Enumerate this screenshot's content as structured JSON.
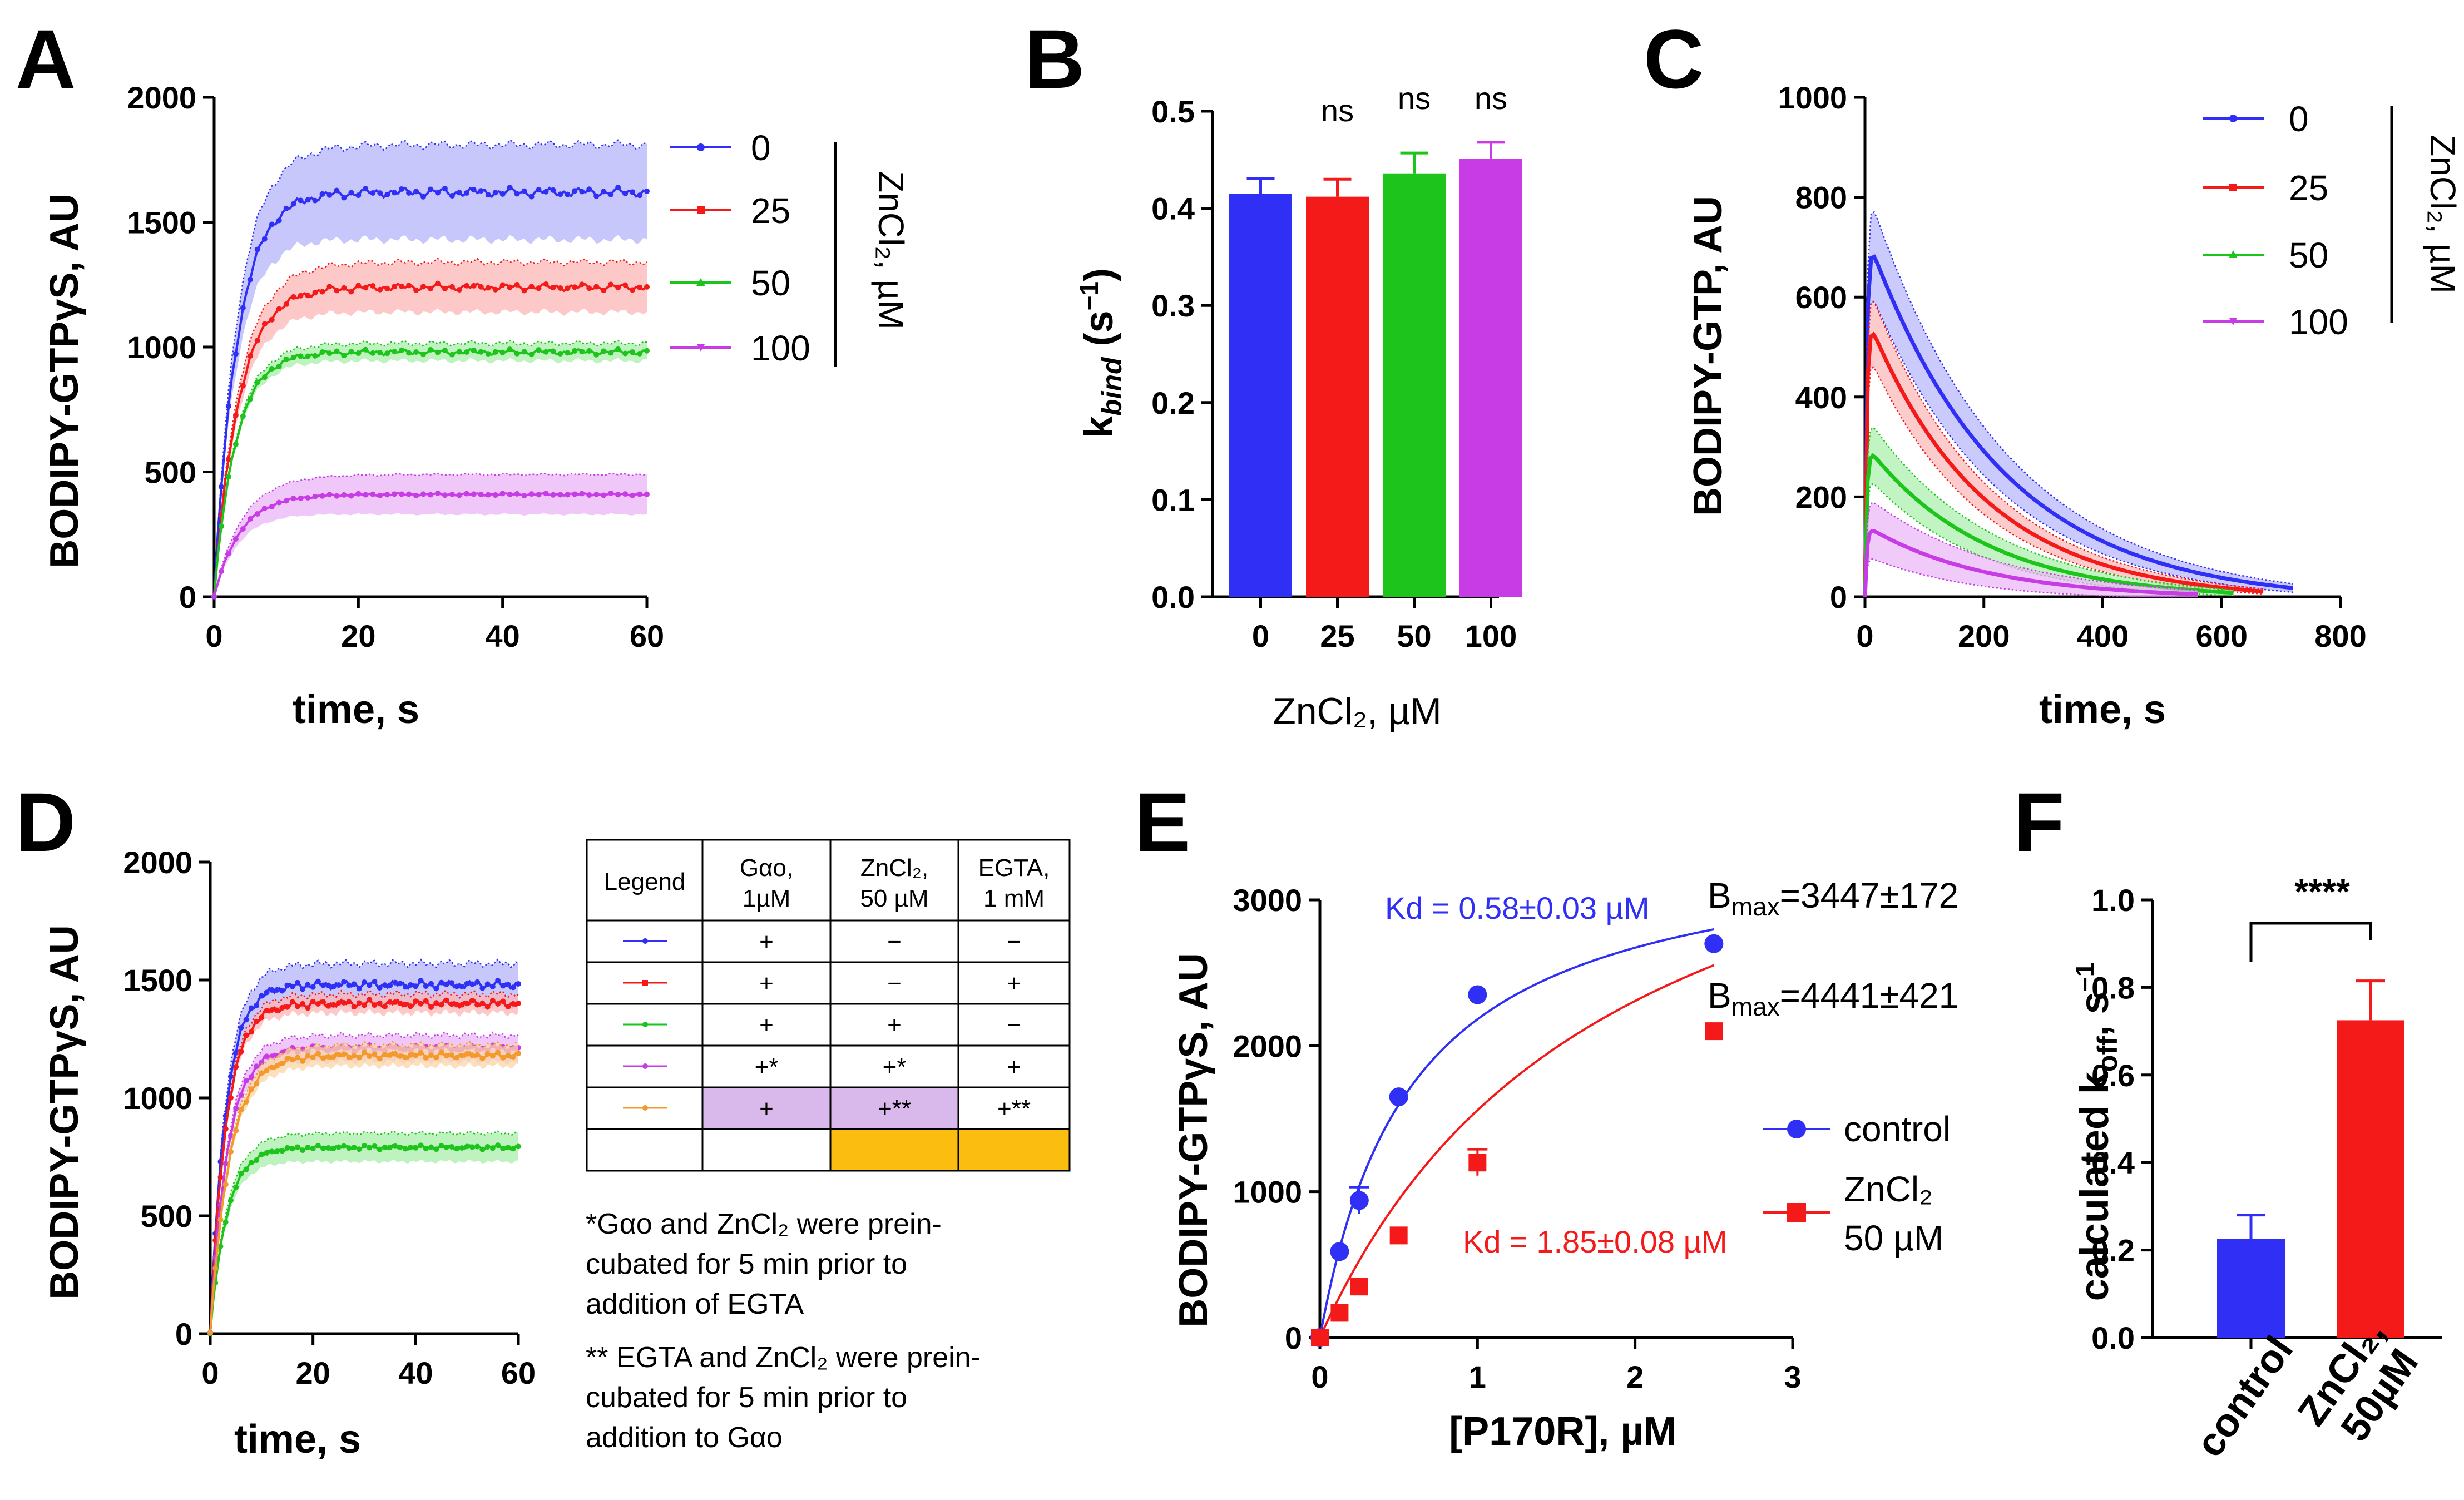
{
  "panels": {
    "A": "A",
    "B": "B",
    "C": "C",
    "D": "D",
    "E": "E",
    "F": "F"
  },
  "colors": {
    "blue": "#2f2ff5",
    "red": "#f51a1a",
    "green": "#1cc41c",
    "magenta": "#c83ce6",
    "orange": "#f39a2c",
    "blueBand": "#b4b4fb",
    "redBand": "#fbb6b6",
    "greenBand": "#a8eea8",
    "magentaBand": "#eab4f6",
    "orangeBand": "#fbd6a8",
    "violetCell": "#d9b8ec",
    "orangeCell": "#fbbd0f"
  },
  "chart_data": [
    {
      "id": "A",
      "type": "line",
      "title": "",
      "xlabel": "time, s",
      "ylabel": "BODIPY-GTPγS, AU",
      "xlim": [
        0,
        60
      ],
      "ylim": [
        0,
        2000
      ],
      "xticks": [
        0,
        20,
        40,
        60
      ],
      "yticks": [
        0,
        500,
        1000,
        1500,
        2000
      ],
      "legend_title": "ZnCl₂, µM",
      "series": [
        {
          "name": "0",
          "plateau": 1620,
          "tau": 3.2,
          "band": 190,
          "color": "blue"
        },
        {
          "name": "25",
          "plateau": 1240,
          "tau": 3.4,
          "band": 100,
          "color": "red"
        },
        {
          "name": "50",
          "plateau": 980,
          "tau": 3.0,
          "band": 35,
          "color": "green"
        },
        {
          "name": "100",
          "plateau": 410,
          "tau": 3.6,
          "band": 80,
          "color": "magenta"
        }
      ]
    },
    {
      "id": "B",
      "type": "bar",
      "title": "",
      "xlabel": "ZnCl₂, µM",
      "ylabel": "kbind (s⁻¹)",
      "ylim": [
        0,
        0.5
      ],
      "yticks": [
        "0.0",
        "0.1",
        "0.2",
        "0.3",
        "0.4",
        "0.5"
      ],
      "categories": [
        "0",
        "25",
        "50",
        "100"
      ],
      "values": [
        0.415,
        0.412,
        0.436,
        0.451
      ],
      "errors": [
        0.016,
        0.018,
        0.021,
        0.017
      ],
      "colors": [
        "blue",
        "red",
        "green",
        "magenta"
      ],
      "annotations": [
        "ns",
        "ns",
        "ns"
      ]
    },
    {
      "id": "C",
      "type": "line",
      "title": "",
      "xlabel": "time, s",
      "ylabel": "BODIPY-GTP, AU",
      "xlim": [
        0,
        800
      ],
      "ylim": [
        0,
        1000
      ],
      "xticks": [
        0,
        200,
        400,
        600,
        800
      ],
      "yticks": [
        0,
        200,
        400,
        600,
        800,
        1000
      ],
      "legend_title": "ZnCl₂, µM",
      "series": [
        {
          "name": "0",
          "peak": 720,
          "tau": 270,
          "band": 95,
          "end": 720,
          "color": "blue"
        },
        {
          "name": "25",
          "peak": 560,
          "tau": 230,
          "band": 70,
          "end": 670,
          "color": "red"
        },
        {
          "name": "50",
          "peak": 300,
          "tau": 240,
          "band": 60,
          "end": 620,
          "color": "green"
        },
        {
          "name": "100",
          "peak": 140,
          "tau": 250,
          "band": 60,
          "end": 560,
          "color": "magenta"
        }
      ]
    },
    {
      "id": "D",
      "type": "line",
      "title": "",
      "xlabel": "time, s",
      "ylabel": "BODIPY-GTPγS, AU",
      "xlim": [
        0,
        60
      ],
      "ylim": [
        0,
        2000
      ],
      "xticks": [
        0,
        20,
        40,
        60
      ],
      "yticks": [
        0,
        500,
        1000,
        1500,
        2000
      ],
      "series": [
        {
          "name": "Gαo",
          "plateau": 1480,
          "tau": 3.0,
          "band": 90,
          "color": "blue"
        },
        {
          "name": "Gαo + EGTA",
          "plateau": 1400,
          "tau": 3.1,
          "band": 40,
          "color": "red"
        },
        {
          "name": "Gαo + ZnCl₂",
          "plateau": 790,
          "tau": 3.2,
          "band": 60,
          "color": "green"
        },
        {
          "name": "Gαo + ZnCl₂ (pre) + EGTA",
          "plateau": 1210,
          "tau": 3.3,
          "band": 55,
          "color": "magenta"
        },
        {
          "name": "Gαo + (EGTA + ZnCl₂ pre)",
          "plateau": 1180,
          "tau": 3.8,
          "band": 45,
          "color": "orange"
        }
      ]
    },
    {
      "id": "E",
      "type": "scatter",
      "title": "",
      "xlabel": "[P170R], µM",
      "ylabel": "BODIPY-GTPγS,  AU",
      "xlim": [
        0,
        3
      ],
      "ylim": [
        0,
        3000
      ],
      "xticks": [
        0,
        1,
        2,
        3
      ],
      "yticks": [
        0,
        1000,
        2000,
        3000
      ],
      "series": [
        {
          "name": "control",
          "x": [
            0,
            0.125,
            0.25,
            0.5,
            1,
            2.5
          ],
          "y": [
            0,
            590,
            940,
            1650,
            2350,
            2700
          ],
          "err": [
            0,
            0,
            90,
            0,
            0,
            0
          ],
          "fit": {
            "bmax": 3447,
            "kd": 0.58
          },
          "color": "blue",
          "marker": "circle"
        },
        {
          "name": "ZnCl₂ 50 µM",
          "x": [
            0,
            0.125,
            0.25,
            0.5,
            1,
            2.5
          ],
          "y": [
            0,
            170,
            350,
            700,
            1200,
            2100
          ],
          "err": [
            0,
            0,
            0,
            0,
            90,
            0
          ],
          "fit": {
            "bmax": 4441,
            "kd": 1.85
          },
          "color": "red",
          "marker": "square"
        }
      ],
      "annotations": {
        "kd_control": "Kd = 0.58±0.03 µM",
        "bmax_control": "=3447±172",
        "kd_zn": "Kd = 1.85±0.08 µM",
        "bmax_zn": "=4441±421"
      }
    },
    {
      "id": "F",
      "type": "bar",
      "title": "",
      "xlabel": "",
      "ylabel": "calculated koff, s⁻¹",
      "ylim": [
        0,
        1.0
      ],
      "yticks": [
        "0.0",
        "0.2",
        "0.4",
        "0.6",
        "0.8",
        "1.0"
      ],
      "categories": [
        "control",
        "ZnCl₂, 50µM"
      ],
      "values": [
        0.225,
        0.725
      ],
      "errors": [
        0.055,
        0.09
      ],
      "colors": [
        "blue",
        "red"
      ],
      "significance": "****"
    }
  ],
  "text": {
    "a_xlabel": "time, s",
    "a_ylabel": "BODIPY-GTPγS,  AU",
    "a_legend": [
      "0",
      "25",
      "50",
      "100"
    ],
    "a_legend_title": "ZnCl₂, µM",
    "b_ylabel_k": "k",
    "b_ylabel_sub": "bind",
    "b_ylabel_rest": " (s",
    "b_ylabel_sup": "−1",
    "b_ylabel_end": ")",
    "b_xlabel": "ZnCl₂, µM",
    "b_ns": "ns",
    "c_xlabel": "time, s",
    "c_ylabel": "BODIPY-GTP, AU",
    "c_legend": [
      "0",
      "25",
      "50",
      "100"
    ],
    "c_legend_title": "ZnCl₂, µM",
    "d_xlabel": "time, s",
    "d_ylabel": "BODIPY-GTPγS,  AU",
    "table_header": [
      "Legend",
      "Gαo,",
      "1µM",
      "ZnCl₂,",
      "50 µM",
      "EGTA,",
      "1 mM"
    ],
    "table_rows": [
      [
        "+",
        "−",
        "−"
      ],
      [
        "+",
        "−",
        "+"
      ],
      [
        "+",
        "+",
        "−"
      ],
      [
        "+*",
        "+*",
        "+"
      ],
      [
        "+",
        "+**",
        "+**"
      ]
    ],
    "note1": [
      "*Gαo and ZnCl₂ were prein-",
      "cubated for 5 min prior to",
      "addition of EGTA"
    ],
    "note2": [
      "** EGTA and ZnCl₂ were prein-",
      "cubated for 5 min prior to",
      "addition to Gαo"
    ],
    "e_xlabel": "[P170R], µM",
    "e_ylabel": "BODIPY-GTPγS,  AU",
    "e_kd1": "Kd = 0.58±0.03 µM",
    "e_bmax1_b": "B",
    "e_bmax1_sub": "max",
    "e_bmax1": "=3447±172",
    "e_kd2": "Kd = 1.85±0.08 µM",
    "e_bmax2_b": "B",
    "e_bmax2_sub": "max",
    "e_bmax2": "=4441±421",
    "e_leg1": "control",
    "e_leg2a": "ZnCl₂",
    "e_leg2b": "50 µM",
    "f_ylabel_a": "calculated k",
    "f_ylabel_sub": "off",
    "f_ylabel_b": ", s",
    "f_ylabel_sup": "−1",
    "f_cat1": "control",
    "f_cat2a": "ZnCl₂,",
    "f_cat2b": "50µM",
    "f_sig": "****"
  }
}
